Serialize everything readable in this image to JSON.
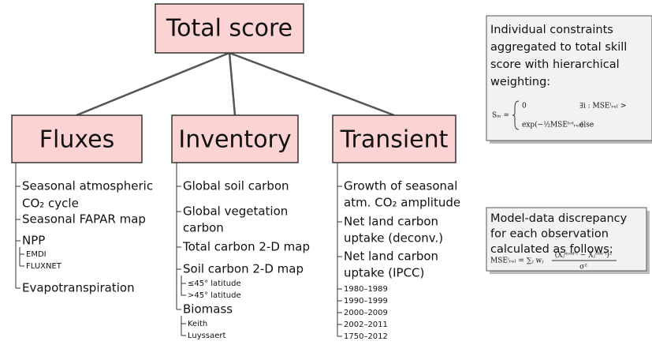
{
  "root": "Total score",
  "branches": [
    {
      "label": "Fluxes",
      "items": [
        {
          "lines": [
            "Seasonal atmospheric",
            "CO₂ cycle"
          ]
        },
        {
          "lines": [
            "Seasonal FAPAR map"
          ]
        },
        {
          "lines": [
            "NPP"
          ],
          "children": [
            "EMDI",
            "FLUXNET"
          ]
        },
        {
          "lines": [
            "Evapotranspiration"
          ]
        }
      ]
    },
    {
      "label": "Inventory",
      "items": [
        {
          "lines": [
            "Global soil carbon"
          ]
        },
        {
          "lines": [
            "Global vegetation",
            "carbon"
          ]
        },
        {
          "lines": [
            "Total carbon 2-D map"
          ]
        },
        {
          "lines": [
            "Soil carbon 2-D map"
          ],
          "children": [
            "≤45° latitude",
            ">45° latitude"
          ]
        },
        {
          "lines": [
            "Biomass"
          ],
          "children": [
            "Keith",
            "Luyssaert"
          ]
        }
      ]
    },
    {
      "label": "Transient",
      "items": [
        {
          "lines": [
            "Growth of seasonal",
            "atm. CO₂ amplitude"
          ]
        },
        {
          "lines": [
            "Net land carbon",
            "uptake (deconv.)"
          ]
        },
        {
          "lines": [
            "Net land carbon",
            "uptake (IPCC)"
          ],
          "children": [
            "1980–1989",
            "1990–1999",
            "2000–2009",
            "2002–2011",
            "1750–2012"
          ]
        }
      ]
    }
  ],
  "notes": [
    {
      "lines": [
        "Individual constraints",
        "aggregated to total skill",
        "score with hierarchical",
        "weighting:"
      ],
      "formula": [
        "Sₘ =",
        "0",
        "∃i : MSEⁱᵣₑₗ >",
        "exp(−½MSEᵗᵒᵗᵣₑₗ)",
        "else"
      ]
    },
    {
      "lines": [
        "Model-data discrepancy",
        "for each observation",
        "calculated as follows:"
      ],
      "formula": [
        "MSEⁱᵣₑₗ = ∑ⱼ wⱼ",
        "(Xⱼᵐᵒᵈ'ⁱ − Xⱼᵒᵇˢ'ⁱ)²",
        "σ²"
      ]
    }
  ]
}
